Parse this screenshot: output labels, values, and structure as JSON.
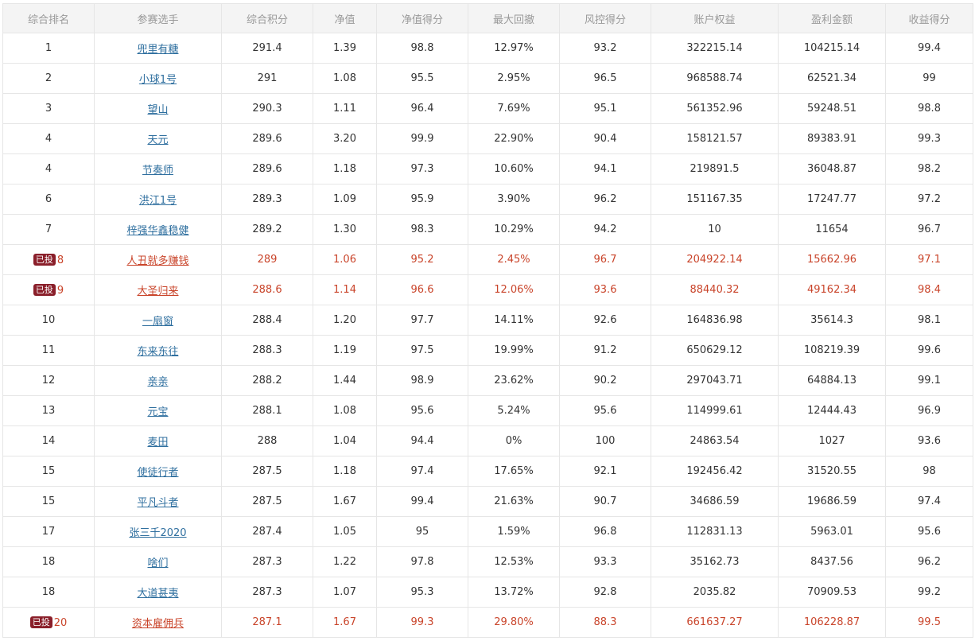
{
  "table": {
    "headers": [
      "综合排名",
      "参赛选手",
      "综合积分",
      "净值",
      "净值得分",
      "最大回撤",
      "风控得分",
      "账户权益",
      "盈利金额",
      "收益得分"
    ],
    "badge_label": "已投",
    "rows": [
      {
        "rank": "1",
        "player": "兜里有糖",
        "score": "291.4",
        "nav": "1.39",
        "nav_score": "98.8",
        "drawdown": "12.97%",
        "risk_score": "93.2",
        "equity": "322215.14",
        "profit": "104215.14",
        "return_score": "99.4",
        "invested": false
      },
      {
        "rank": "2",
        "player": "小球1号",
        "score": "291",
        "nav": "1.08",
        "nav_score": "95.5",
        "drawdown": "2.95%",
        "risk_score": "96.5",
        "equity": "968588.74",
        "profit": "62521.34",
        "return_score": "99",
        "invested": false
      },
      {
        "rank": "3",
        "player": "望山",
        "score": "290.3",
        "nav": "1.11",
        "nav_score": "96.4",
        "drawdown": "7.69%",
        "risk_score": "95.1",
        "equity": "561352.96",
        "profit": "59248.51",
        "return_score": "98.8",
        "invested": false
      },
      {
        "rank": "4",
        "player": "天元",
        "score": "289.6",
        "nav": "3.20",
        "nav_score": "99.9",
        "drawdown": "22.90%",
        "risk_score": "90.4",
        "equity": "158121.57",
        "profit": "89383.91",
        "return_score": "99.3",
        "invested": false
      },
      {
        "rank": "4",
        "player": "节奏师",
        "score": "289.6",
        "nav": "1.18",
        "nav_score": "97.3",
        "drawdown": "10.60%",
        "risk_score": "94.1",
        "equity": "219891.5",
        "profit": "36048.87",
        "return_score": "98.2",
        "invested": false
      },
      {
        "rank": "6",
        "player": "洪江1号",
        "score": "289.3",
        "nav": "1.09",
        "nav_score": "95.9",
        "drawdown": "3.90%",
        "risk_score": "96.2",
        "equity": "151167.35",
        "profit": "17247.77",
        "return_score": "97.2",
        "invested": false
      },
      {
        "rank": "7",
        "player": "梓强华鑫稳健",
        "score": "289.2",
        "nav": "1.30",
        "nav_score": "98.3",
        "drawdown": "10.29%",
        "risk_score": "94.2",
        "equity": "10",
        "profit": "11654",
        "return_score": "96.7",
        "invested": false
      },
      {
        "rank": "8",
        "player": "人丑就多赚钱",
        "score": "289",
        "nav": "1.06",
        "nav_score": "95.2",
        "drawdown": "2.45%",
        "risk_score": "96.7",
        "equity": "204922.14",
        "profit": "15662.96",
        "return_score": "97.1",
        "invested": true
      },
      {
        "rank": "9",
        "player": "大圣归来",
        "score": "288.6",
        "nav": "1.14",
        "nav_score": "96.6",
        "drawdown": "12.06%",
        "risk_score": "93.6",
        "equity": "88440.32",
        "profit": "49162.34",
        "return_score": "98.4",
        "invested": true
      },
      {
        "rank": "10",
        "player": "一扇窗",
        "score": "288.4",
        "nav": "1.20",
        "nav_score": "97.7",
        "drawdown": "14.11%",
        "risk_score": "92.6",
        "equity": "164836.98",
        "profit": "35614.3",
        "return_score": "98.1",
        "invested": false
      },
      {
        "rank": "11",
        "player": "东来东往",
        "score": "288.3",
        "nav": "1.19",
        "nav_score": "97.5",
        "drawdown": "19.99%",
        "risk_score": "91.2",
        "equity": "650629.12",
        "profit": "108219.39",
        "return_score": "99.6",
        "invested": false
      },
      {
        "rank": "12",
        "player": "亲亲",
        "score": "288.2",
        "nav": "1.44",
        "nav_score": "98.9",
        "drawdown": "23.62%",
        "risk_score": "90.2",
        "equity": "297043.71",
        "profit": "64884.13",
        "return_score": "99.1",
        "invested": false
      },
      {
        "rank": "13",
        "player": "元宝",
        "score": "288.1",
        "nav": "1.08",
        "nav_score": "95.6",
        "drawdown": "5.24%",
        "risk_score": "95.6",
        "equity": "114999.61",
        "profit": "12444.43",
        "return_score": "96.9",
        "invested": false
      },
      {
        "rank": "14",
        "player": "麦田",
        "score": "288",
        "nav": "1.04",
        "nav_score": "94.4",
        "drawdown": "0%",
        "risk_score": "100",
        "equity": "24863.54",
        "profit": "1027",
        "return_score": "93.6",
        "invested": false
      },
      {
        "rank": "15",
        "player": "使徒行者",
        "score": "287.5",
        "nav": "1.18",
        "nav_score": "97.4",
        "drawdown": "17.65%",
        "risk_score": "92.1",
        "equity": "192456.42",
        "profit": "31520.55",
        "return_score": "98",
        "invested": false
      },
      {
        "rank": "15",
        "player": "平凡斗者",
        "score": "287.5",
        "nav": "1.67",
        "nav_score": "99.4",
        "drawdown": "21.63%",
        "risk_score": "90.7",
        "equity": "34686.59",
        "profit": "19686.59",
        "return_score": "97.4",
        "invested": false
      },
      {
        "rank": "17",
        "player": "张三千2020",
        "score": "287.4",
        "nav": "1.05",
        "nav_score": "95",
        "drawdown": "1.59%",
        "risk_score": "96.8",
        "equity": "112831.13",
        "profit": "5963.01",
        "return_score": "95.6",
        "invested": false
      },
      {
        "rank": "18",
        "player": "啥们",
        "score": "287.3",
        "nav": "1.22",
        "nav_score": "97.8",
        "drawdown": "12.53%",
        "risk_score": "93.3",
        "equity": "35162.73",
        "profit": "8437.56",
        "return_score": "96.2",
        "invested": false
      },
      {
        "rank": "18",
        "player": "大道甚夷",
        "score": "287.3",
        "nav": "1.07",
        "nav_score": "95.3",
        "drawdown": "13.72%",
        "risk_score": "92.8",
        "equity": "2035.82",
        "profit": "70909.53",
        "return_score": "99.2",
        "invested": false
      },
      {
        "rank": "20",
        "player": "资本雇佣兵",
        "score": "287.1",
        "nav": "1.67",
        "nav_score": "99.3",
        "drawdown": "29.80%",
        "risk_score": "88.3",
        "equity": "661637.27",
        "profit": "106228.87",
        "return_score": "99.5",
        "invested": true
      }
    ]
  }
}
